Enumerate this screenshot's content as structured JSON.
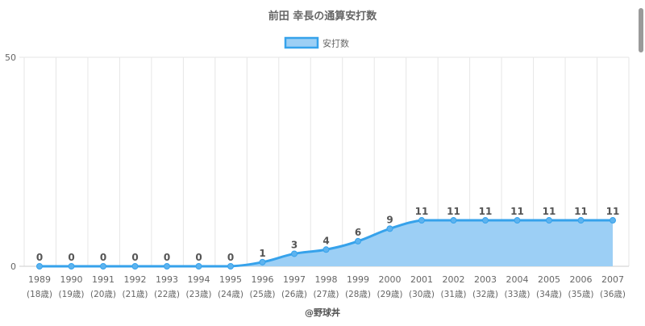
{
  "chart_data": {
    "type": "area",
    "title": "前田 幸長の通算安打数",
    "legend": {
      "label": "安打数",
      "position": "top-center"
    },
    "categories": [
      "1989",
      "1990",
      "1991",
      "1992",
      "1993",
      "1994",
      "1995",
      "1996",
      "1997",
      "1998",
      "1999",
      "2000",
      "2001",
      "2002",
      "2003",
      "2004",
      "2005",
      "2006",
      "2007"
    ],
    "sub_labels": [
      "(18歳)",
      "(19歳)",
      "(20歳)",
      "(21歳)",
      "(22歳)",
      "(23歳)",
      "(24歳)",
      "(25歳)",
      "(26歳)",
      "(27歳)",
      "(28歳)",
      "(29歳)",
      "(30歳)",
      "(31歳)",
      "(32歳)",
      "(33歳)",
      "(34歳)",
      "(35歳)",
      "(36歳)"
    ],
    "series": [
      {
        "name": "安打数",
        "values": [
          0,
          0,
          0,
          0,
          0,
          0,
          0,
          1,
          3,
          4,
          6,
          9,
          11,
          11,
          11,
          11,
          11,
          11,
          11
        ]
      }
    ],
    "ylim": [
      0,
      50
    ],
    "yticks": [
      0,
      50
    ],
    "grid": true,
    "colors": {
      "line": "#36a2eb",
      "fill": "#9ccff5",
      "grid": "#e6e6e6",
      "text": "#666666"
    },
    "credit": "@野球丼"
  }
}
